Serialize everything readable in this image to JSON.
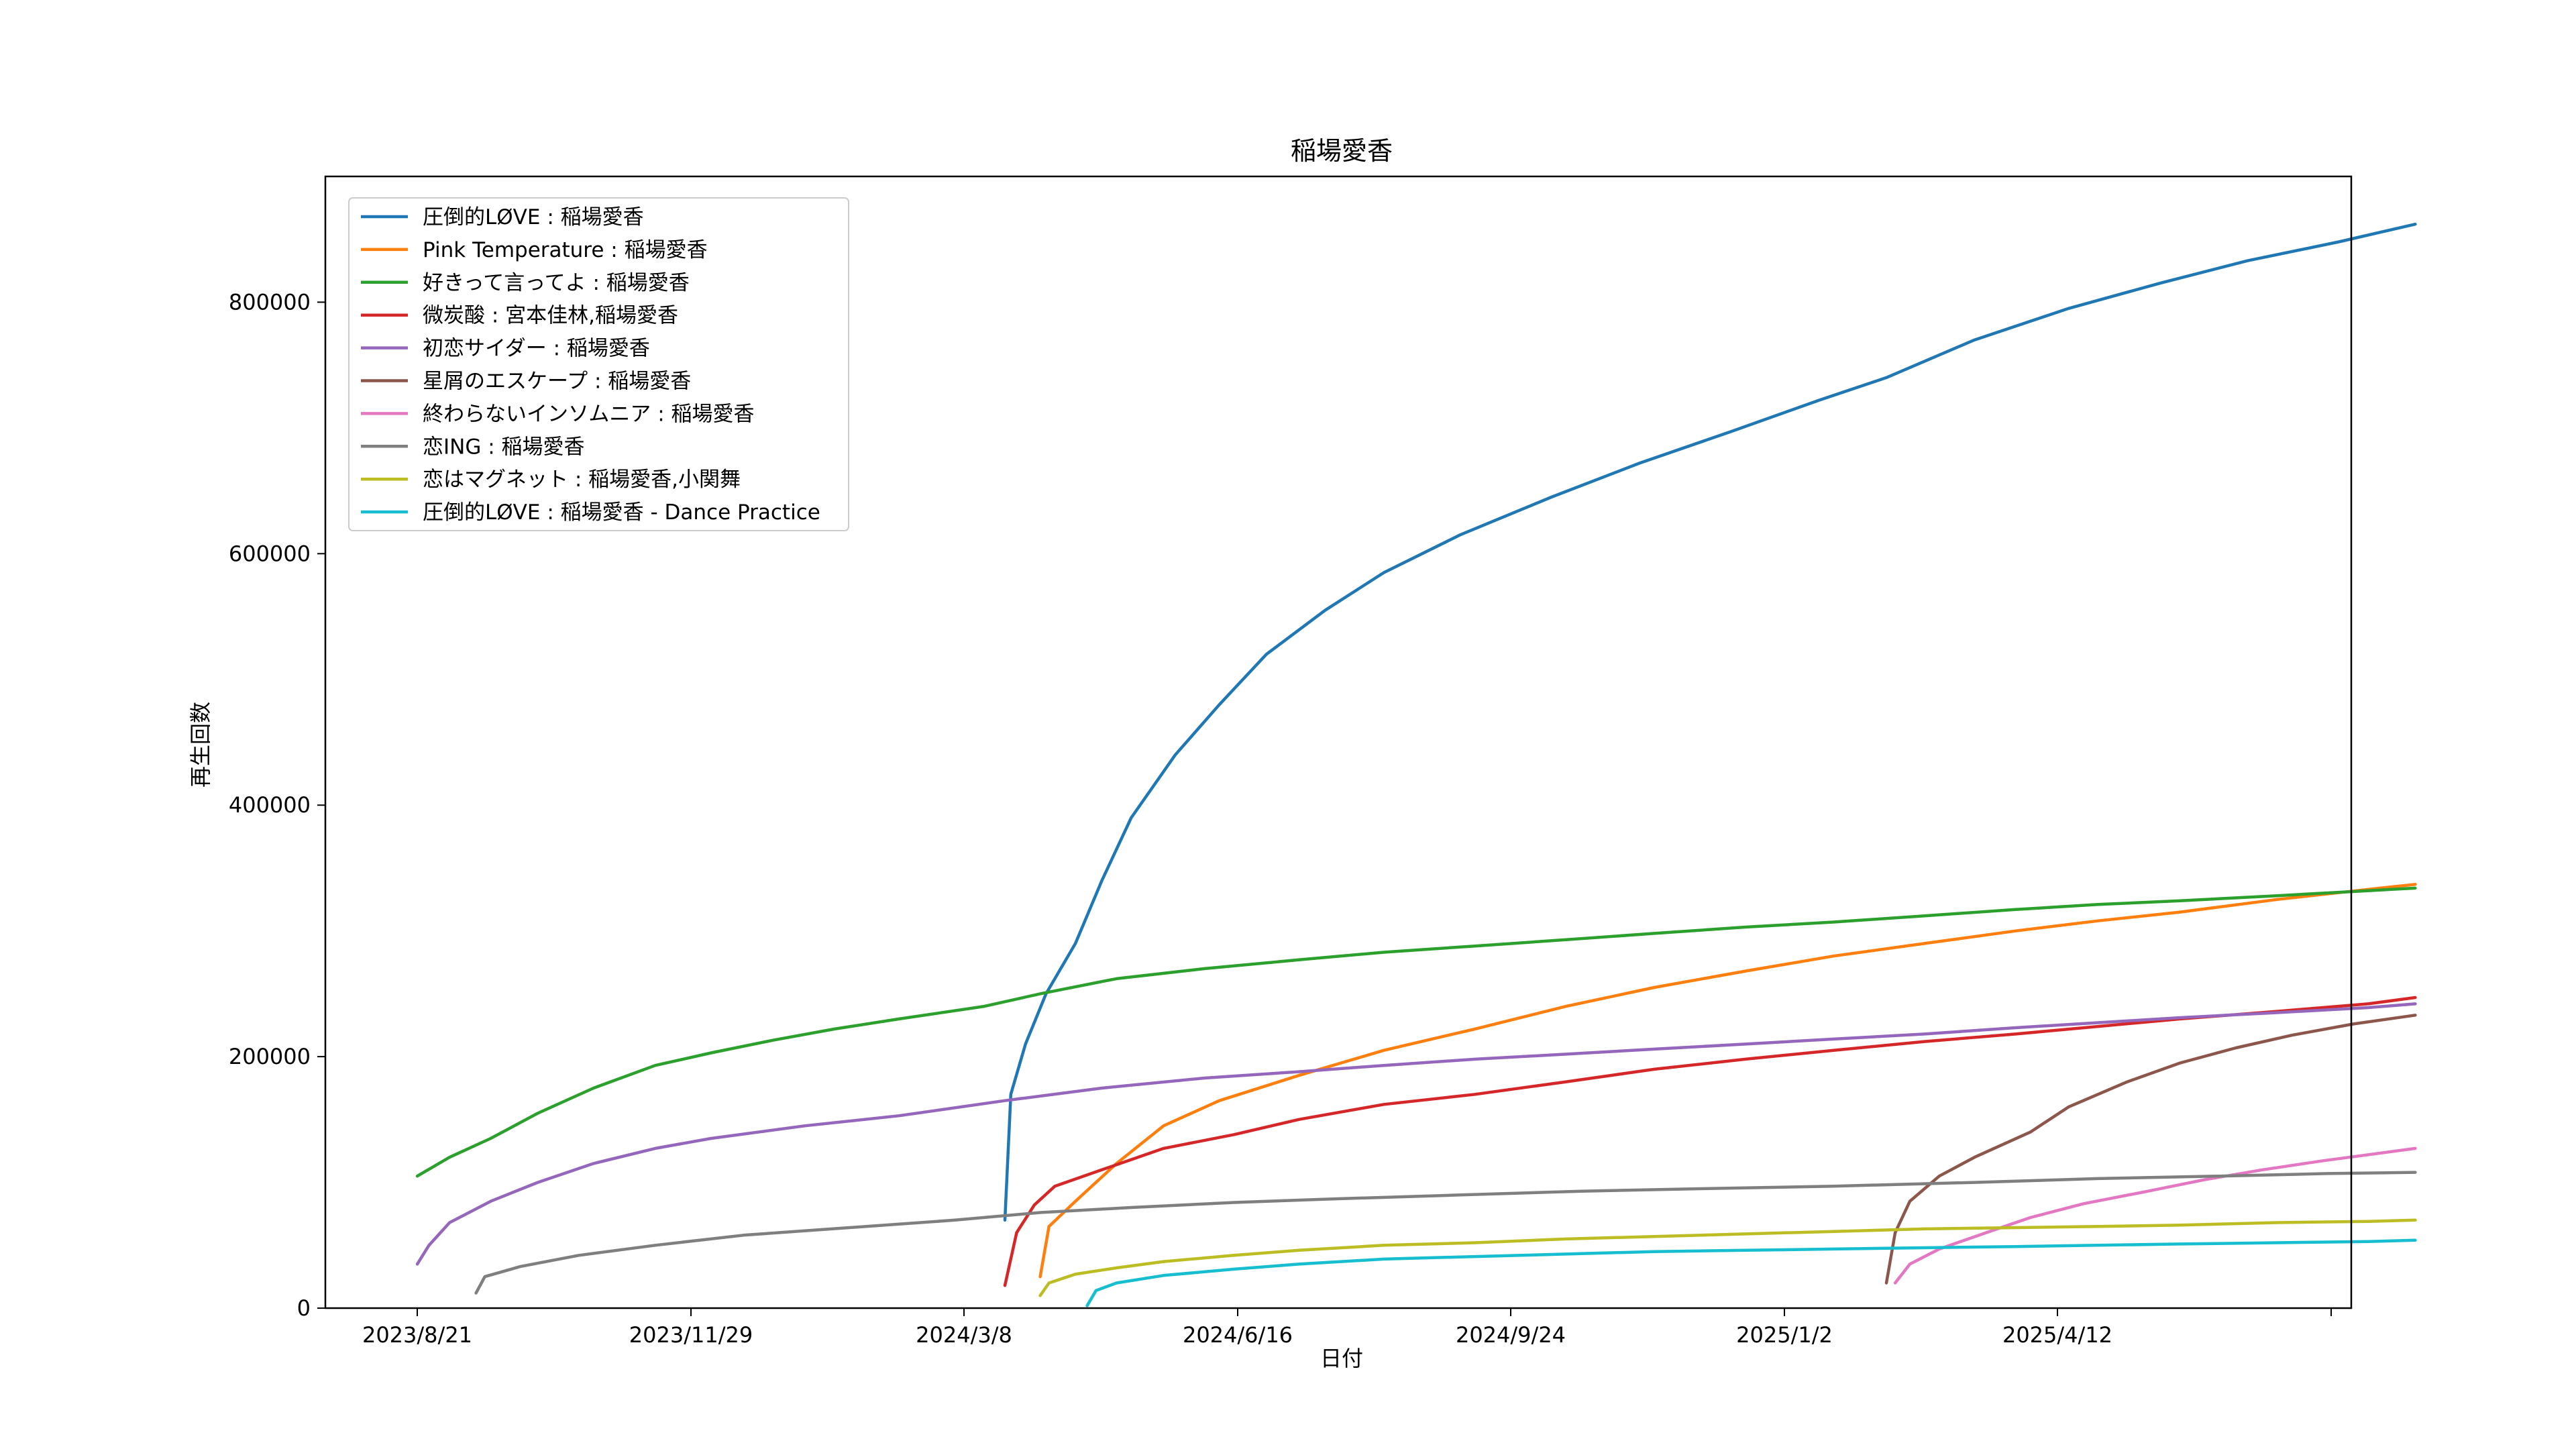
{
  "chart_data": {
    "type": "line",
    "title": "稲場愛香",
    "xlabel": "日付",
    "ylabel": "再生回数",
    "x_ticks": [
      "2023/8/21",
      "2023/11/29",
      "2024/3/8",
      "2024/6/16",
      "2024/9/24",
      "2025/1/2",
      "2025/4/12",
      ""
    ],
    "y_ticks": [
      "0",
      "200000",
      "400000",
      "600000",
      "800000"
    ],
    "ylim": [
      0,
      900000
    ],
    "grid": false,
    "legend_position": "upper-left",
    "series": [
      {
        "name": "圧倒的LØVE : 稲場愛香",
        "color": "#1f77b4",
        "points": [
          [
            "2024-03-08",
            70000
          ],
          [
            "2024-03-10",
            170000
          ],
          [
            "2024-03-15",
            210000
          ],
          [
            "2024-03-22",
            250000
          ],
          [
            "2024-04-01",
            290000
          ],
          [
            "2024-04-10",
            340000
          ],
          [
            "2024-04-20",
            390000
          ],
          [
            "2024-05-05",
            440000
          ],
          [
            "2024-05-20",
            480000
          ],
          [
            "2024-06-05",
            520000
          ],
          [
            "2024-06-25",
            555000
          ],
          [
            "2024-07-15",
            585000
          ],
          [
            "2024-08-10",
            615000
          ],
          [
            "2024-09-10",
            645000
          ],
          [
            "2024-10-10",
            672000
          ],
          [
            "2024-11-10",
            697000
          ],
          [
            "2024-12-10",
            722000
          ],
          [
            "2025-01-02",
            740000
          ],
          [
            "2025-02-01",
            770000
          ],
          [
            "2025-03-05",
            795000
          ],
          [
            "2025-04-05",
            815000
          ],
          [
            "2025-05-05",
            833000
          ],
          [
            "2025-06-05",
            848000
          ],
          [
            "2025-07-01",
            862000
          ]
        ]
      },
      {
        "name": "Pink Temperature : 稲場愛香",
        "color": "#ff7f0e",
        "points": [
          [
            "2024-03-20",
            25000
          ],
          [
            "2024-03-23",
            65000
          ],
          [
            "2024-04-01",
            85000
          ],
          [
            "2024-04-15",
            115000
          ],
          [
            "2024-05-01",
            145000
          ],
          [
            "2024-05-20",
            165000
          ],
          [
            "2024-06-16",
            185000
          ],
          [
            "2024-07-15",
            205000
          ],
          [
            "2024-08-15",
            222000
          ],
          [
            "2024-09-15",
            240000
          ],
          [
            "2024-10-15",
            255000
          ],
          [
            "2024-11-15",
            268000
          ],
          [
            "2024-12-15",
            280000
          ],
          [
            "2025-01-15",
            290000
          ],
          [
            "2025-02-15",
            300000
          ],
          [
            "2025-03-15",
            308000
          ],
          [
            "2025-04-12",
            315000
          ],
          [
            "2025-05-15",
            325000
          ],
          [
            "2025-06-15",
            333000
          ],
          [
            "2025-07-01",
            337000
          ]
        ]
      },
      {
        "name": "好きって言ってよ : 稲場愛香",
        "color": "#2ca02c",
        "points": [
          [
            "2023-08-21",
            105000
          ],
          [
            "2023-09-01",
            120000
          ],
          [
            "2023-09-15",
            135000
          ],
          [
            "2023-10-01",
            155000
          ],
          [
            "2023-10-20",
            175000
          ],
          [
            "2023-11-10",
            193000
          ],
          [
            "2023-11-29",
            203000
          ],
          [
            "2023-12-20",
            213000
          ],
          [
            "2024-01-10",
            222000
          ],
          [
            "2024-02-01",
            230000
          ],
          [
            "2024-03-01",
            240000
          ],
          [
            "2024-03-20",
            250000
          ],
          [
            "2024-04-15",
            262000
          ],
          [
            "2024-05-15",
            270000
          ],
          [
            "2024-06-16",
            277000
          ],
          [
            "2024-07-15",
            283000
          ],
          [
            "2024-08-15",
            288000
          ],
          [
            "2024-09-15",
            293000
          ],
          [
            "2024-10-15",
            298000
          ],
          [
            "2024-11-15",
            303000
          ],
          [
            "2024-12-15",
            307000
          ],
          [
            "2025-01-15",
            312000
          ],
          [
            "2025-02-15",
            317000
          ],
          [
            "2025-03-15",
            321000
          ],
          [
            "2025-04-12",
            324000
          ],
          [
            "2025-05-15",
            328000
          ],
          [
            "2025-06-15",
            332000
          ],
          [
            "2025-07-01",
            334000
          ]
        ]
      },
      {
        "name": "微炭酸 : 宮本佳林,稲場愛香",
        "color": "#d62728",
        "points": [
          [
            "2024-03-08",
            18000
          ],
          [
            "2024-03-12",
            60000
          ],
          [
            "2024-03-18",
            82000
          ],
          [
            "2024-03-25",
            97000
          ],
          [
            "2024-04-10",
            110000
          ],
          [
            "2024-05-01",
            127000
          ],
          [
            "2024-05-25",
            138000
          ],
          [
            "2024-06-16",
            150000
          ],
          [
            "2024-07-15",
            162000
          ],
          [
            "2024-08-15",
            170000
          ],
          [
            "2024-09-15",
            180000
          ],
          [
            "2024-10-15",
            190000
          ],
          [
            "2024-11-15",
            198000
          ],
          [
            "2024-12-15",
            205000
          ],
          [
            "2025-01-15",
            212000
          ],
          [
            "2025-02-15",
            218000
          ],
          [
            "2025-03-15",
            224000
          ],
          [
            "2025-04-12",
            230000
          ],
          [
            "2025-05-15",
            236000
          ],
          [
            "2025-06-15",
            242000
          ],
          [
            "2025-07-01",
            247000
          ]
        ]
      },
      {
        "name": "初恋サイダー : 稲場愛香",
        "color": "#9467bd",
        "points": [
          [
            "2023-08-21",
            35000
          ],
          [
            "2023-08-25",
            50000
          ],
          [
            "2023-09-01",
            68000
          ],
          [
            "2023-09-15",
            85000
          ],
          [
            "2023-10-01",
            100000
          ],
          [
            "2023-10-20",
            115000
          ],
          [
            "2023-11-10",
            127000
          ],
          [
            "2023-11-29",
            135000
          ],
          [
            "2023-12-31",
            145000
          ],
          [
            "2024-02-01",
            153000
          ],
          [
            "2024-03-08",
            165000
          ],
          [
            "2024-04-10",
            175000
          ],
          [
            "2024-05-15",
            183000
          ],
          [
            "2024-06-16",
            188000
          ],
          [
            "2024-07-15",
            193000
          ],
          [
            "2024-08-15",
            198000
          ],
          [
            "2024-09-15",
            202000
          ],
          [
            "2024-10-15",
            206000
          ],
          [
            "2024-11-15",
            210000
          ],
          [
            "2024-12-15",
            214000
          ],
          [
            "2025-01-15",
            218000
          ],
          [
            "2025-02-15",
            223000
          ],
          [
            "2025-03-15",
            227000
          ],
          [
            "2025-04-12",
            231000
          ],
          [
            "2025-05-15",
            235000
          ],
          [
            "2025-06-15",
            239000
          ],
          [
            "2025-07-01",
            242000
          ]
        ]
      },
      {
        "name": "星屑のエスケープ : 稲場愛香",
        "color": "#8c564b",
        "points": [
          [
            "2025-01-02",
            20000
          ],
          [
            "2025-01-05",
            60000
          ],
          [
            "2025-01-10",
            85000
          ],
          [
            "2025-01-20",
            105000
          ],
          [
            "2025-02-01",
            120000
          ],
          [
            "2025-02-20",
            140000
          ],
          [
            "2025-03-05",
            160000
          ],
          [
            "2025-03-25",
            180000
          ],
          [
            "2025-04-12",
            195000
          ],
          [
            "2025-05-01",
            207000
          ],
          [
            "2025-05-20",
            217000
          ],
          [
            "2025-06-10",
            226000
          ],
          [
            "2025-07-01",
            233000
          ]
        ]
      },
      {
        "name": "終わらないインソムニア : 稲場愛香",
        "color": "#e377c2",
        "points": [
          [
            "2025-01-05",
            20000
          ],
          [
            "2025-01-10",
            35000
          ],
          [
            "2025-01-20",
            47000
          ],
          [
            "2025-02-05",
            60000
          ],
          [
            "2025-02-20",
            72000
          ],
          [
            "2025-03-10",
            83000
          ],
          [
            "2025-04-01",
            93000
          ],
          [
            "2025-04-20",
            102000
          ],
          [
            "2025-05-10",
            110000
          ],
          [
            "2025-05-30",
            117000
          ],
          [
            "2025-06-15",
            122000
          ],
          [
            "2025-07-01",
            127000
          ]
        ]
      },
      {
        "name": "恋ING : 稲場愛香",
        "color": "#7f7f7f",
        "points": [
          [
            "2023-09-10",
            12000
          ],
          [
            "2023-09-13",
            25000
          ],
          [
            "2023-09-25",
            33000
          ],
          [
            "2023-10-15",
            42000
          ],
          [
            "2023-11-10",
            50000
          ],
          [
            "2023-12-10",
            58000
          ],
          [
            "2024-01-15",
            64000
          ],
          [
            "2024-02-20",
            70000
          ],
          [
            "2024-03-20",
            76000
          ],
          [
            "2024-04-20",
            80000
          ],
          [
            "2024-05-25",
            84000
          ],
          [
            "2024-06-30",
            87000
          ],
          [
            "2024-08-10",
            90000
          ],
          [
            "2024-09-20",
            93000
          ],
          [
            "2024-11-01",
            95000
          ],
          [
            "2024-12-15",
            97000
          ],
          [
            "2025-02-01",
            100000
          ],
          [
            "2025-03-15",
            103000
          ],
          [
            "2025-04-25",
            105000
          ],
          [
            "2025-06-01",
            107000
          ],
          [
            "2025-07-01",
            108000
          ]
        ]
      },
      {
        "name": "恋はマグネット : 稲場愛香,小関舞",
        "color": "#bcbd22",
        "points": [
          [
            "2024-03-20",
            10000
          ],
          [
            "2024-03-23",
            20000
          ],
          [
            "2024-04-01",
            27000
          ],
          [
            "2024-04-15",
            32000
          ],
          [
            "2024-05-01",
            37000
          ],
          [
            "2024-05-25",
            42000
          ],
          [
            "2024-06-16",
            46000
          ],
          [
            "2024-07-15",
            50000
          ],
          [
            "2024-08-15",
            52000
          ],
          [
            "2024-09-15",
            55000
          ],
          [
            "2024-10-15",
            57000
          ],
          [
            "2024-11-15",
            59000
          ],
          [
            "2024-12-15",
            61000
          ],
          [
            "2025-01-15",
            63000
          ],
          [
            "2025-02-15",
            64000
          ],
          [
            "2025-03-15",
            65000
          ],
          [
            "2025-04-12",
            66000
          ],
          [
            "2025-05-15",
            68000
          ],
          [
            "2025-06-15",
            69000
          ],
          [
            "2025-07-01",
            70000
          ]
        ]
      },
      {
        "name": "圧倒的LØVE : 稲場愛香 - Dance Practice",
        "color": "#17becf",
        "points": [
          [
            "2024-04-05",
            2000
          ],
          [
            "2024-04-08",
            14000
          ],
          [
            "2024-04-15",
            20000
          ],
          [
            "2024-05-01",
            26000
          ],
          [
            "2024-05-25",
            31000
          ],
          [
            "2024-06-16",
            35000
          ],
          [
            "2024-07-15",
            39000
          ],
          [
            "2024-08-15",
            41000
          ],
          [
            "2024-09-15",
            43000
          ],
          [
            "2024-10-15",
            45000
          ],
          [
            "2024-11-15",
            46000
          ],
          [
            "2024-12-15",
            47000
          ],
          [
            "2025-01-15",
            48000
          ],
          [
            "2025-02-15",
            49000
          ],
          [
            "2025-03-15",
            50000
          ],
          [
            "2025-04-12",
            51000
          ],
          [
            "2025-05-15",
            52000
          ],
          [
            "2025-06-15",
            53000
          ],
          [
            "2025-07-01",
            54000
          ]
        ]
      }
    ]
  }
}
